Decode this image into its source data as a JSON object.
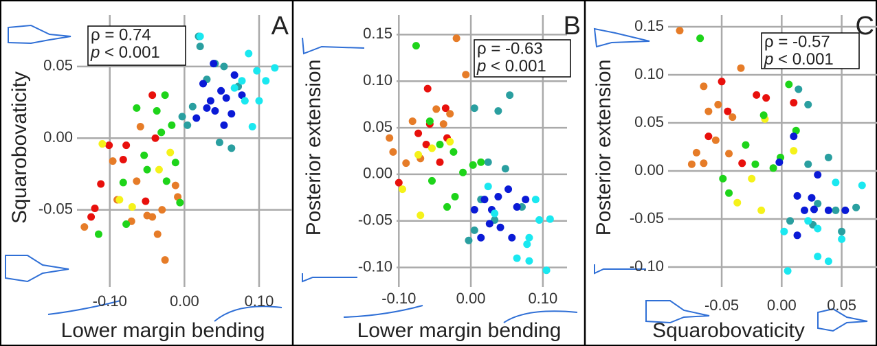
{
  "chart_data": [
    {
      "type": "scatter",
      "panel_label": "A",
      "xlabel": "Lower margin bending",
      "ylabel": "Squarobovaticity",
      "stat": "ρ = 0.74",
      "p_symbol": "p",
      "p_text": " < 0.001",
      "xlim": [
        -0.155,
        0.135
      ],
      "ylim": [
        -0.1,
        0.082
      ],
      "xticks": [
        {
          "value": -0.1,
          "label": "-0.10"
        },
        {
          "value": 0,
          "label": "0.00"
        },
        {
          "value": 0.1,
          "label": "0.10"
        }
      ],
      "yticks": [
        -0.05,
        {
          "value": 0,
          "label": "0.00"
        },
        0.05
      ],
      "grid": true,
      "series": [
        {
          "color": "#e8100c",
          "x": [
            -0.101,
            -0.078,
            -0.112,
            -0.12,
            -0.125,
            -0.039,
            -0.043,
            -0.052,
            -0.082
          ],
          "values": [
            -0.005,
            -0.005,
            -0.032,
            -0.049,
            -0.055,
            0.0,
            0.03,
            -0.044,
            -0.015
          ]
        },
        {
          "color": "#e67c28",
          "x": [
            -0.134,
            -0.096,
            -0.059,
            -0.064,
            -0.05,
            -0.036,
            -0.026,
            -0.012,
            -0.071,
            -0.03,
            -0.09,
            -0.009,
            -0.043
          ],
          "values": [
            -0.062,
            -0.016,
            0.008,
            -0.03,
            -0.054,
            -0.067,
            -0.085,
            -0.033,
            -0.058,
            -0.05,
            -0.043,
            -0.041,
            -0.055
          ]
        },
        {
          "color": "#f5f21a",
          "x": [
            -0.11,
            -0.087,
            -0.034,
            -0.07,
            -0.019
          ],
          "values": [
            -0.004,
            -0.043,
            -0.022,
            -0.048,
            -0.01
          ]
        },
        {
          "color": "#1ed41a",
          "x": [
            -0.115,
            -0.082,
            -0.064,
            -0.037,
            -0.026,
            -0.024,
            -0.05,
            -0.006,
            -0.054,
            -0.012,
            -0.031,
            -0.017,
            -0.078
          ],
          "values": [
            -0.067,
            -0.031,
            0.021,
            0.019,
            0.03,
            -0.03,
            -0.022,
            -0.045,
            -0.012,
            -0.017,
            0.004,
            0.009,
            -0.06
          ]
        },
        {
          "color": "#2a9fa0",
          "x": [
            0.011,
            0.019,
            0.03,
            -0.003,
            0.047,
            0.063,
            0.021,
            0.041,
            0.072,
            0.004,
            0.053
          ],
          "values": [
            0.022,
            0.071,
            0.041,
            0.015,
            -0.003,
            -0.007,
            0.064,
            0.052,
            0.036,
            0.009,
            0.05
          ]
        },
        {
          "color": "#0a1ad6",
          "x": [
            0.025,
            0.035,
            0.041,
            0.049,
            0.056,
            0.067,
            0.03,
            0.016,
            0.063,
            0.039,
            0.077,
            0.053
          ],
          "values": [
            0.038,
            0.026,
            0.019,
            0.033,
            0.028,
            0.044,
            0.021,
            0.014,
            0.017,
            0.052,
            0.03,
            0.009
          ]
        },
        {
          "color": "#1ae8f0",
          "x": [
            0.021,
            0.086,
            0.097,
            0.121,
            0.1,
            0.091,
            0.077,
            0.109,
            0.067,
            0.081
          ],
          "values": [
            0.071,
            0.059,
            0.047,
            0.049,
            0.026,
            0.008,
            0.04,
            0.04,
            0.035,
            0.026
          ]
        }
      ]
    },
    {
      "type": "scatter",
      "panel_label": "B",
      "xlabel": "Lower margin bending",
      "ylabel": "Posterior extension",
      "stat": "ρ = -0.63",
      "p_symbol": "p",
      "p_text": " < 0.001",
      "xlim": [
        -0.148,
        0.124
      ],
      "ylim": [
        -0.115,
        0.165
      ],
      "xticks": [
        {
          "value": -0.1,
          "label": "-0.10"
        },
        {
          "value": 0,
          "label": "0.00"
        },
        {
          "value": 0.1,
          "label": "0.10"
        }
      ],
      "yticks": [
        {
          "value": -0.1,
          "label": "-0.10"
        },
        -0.05,
        {
          "value": 0,
          "label": "0.00"
        },
        0.05,
        {
          "value": 0.1,
          "label": "0.10"
        },
        0.15
      ],
      "grid": true,
      "series": [
        {
          "color": "#e8100c",
          "x": [
            -0.1,
            -0.06,
            -0.035,
            -0.073,
            -0.062,
            -0.033,
            -0.043,
            -0.057
          ],
          "values": [
            -0.009,
            0.092,
            0.071,
            0.044,
            0.032,
            0.039,
            0.013,
            0.054
          ]
        },
        {
          "color": "#e67c28",
          "x": [
            -0.113,
            -0.108,
            -0.02,
            -0.007,
            -0.081,
            -0.048,
            -0.029,
            -0.07,
            -0.09,
            -0.038
          ],
          "values": [
            0.039,
            0.024,
            0.146,
            0.107,
            0.057,
            0.07,
            0.065,
            0.017,
            0.012,
            0.054
          ]
        },
        {
          "color": "#f5f21a",
          "x": [
            -0.095,
            -0.07,
            -0.054,
            -0.029,
            -0.073
          ],
          "values": [
            -0.016,
            -0.044,
            0.028,
            0.035,
            0.021
          ]
        },
        {
          "color": "#1ed41a",
          "x": [
            -0.076,
            -0.057,
            -0.043,
            -0.054,
            -0.024,
            -0.011,
            -0.033,
            0.003,
            0.014,
            -0.022
          ],
          "values": [
            0.138,
            0.057,
            0.032,
            -0.007,
            0.024,
            0.002,
            -0.035,
            0.01,
            0.013,
            -0.024
          ]
        },
        {
          "color": "#2a9fa0",
          "x": [
            0.005,
            0.038,
            0.054,
            0.024,
            0.048,
            0.005,
            -0.003,
            0.033,
            0.071,
            0.014
          ],
          "values": [
            0.071,
            0.068,
            0.085,
            0.013,
            0.006,
            -0.06,
            -0.071,
            -0.049,
            -0.035,
            -0.027
          ]
        },
        {
          "color": "#0a1ad6",
          "x": [
            0.005,
            0.019,
            0.029,
            0.038,
            0.052,
            0.064,
            0.014,
            0.041,
            0.057,
            0.076,
            0.026
          ],
          "values": [
            -0.038,
            -0.027,
            -0.038,
            -0.024,
            -0.016,
            -0.035,
            -0.068,
            -0.057,
            -0.068,
            -0.027,
            -0.053
          ]
        },
        {
          "color": "#1ae8f0",
          "x": [
            0.081,
            0.09,
            0.095,
            0.11,
            0.078,
            0.064,
            0.105,
            0.024,
            0.033,
            0.081
          ],
          "values": [
            -0.068,
            -0.027,
            -0.049,
            -0.048,
            -0.075,
            -0.09,
            -0.103,
            -0.013,
            -0.042,
            -0.093
          ]
        }
      ]
    },
    {
      "type": "scatter",
      "panel_label": "C",
      "xlabel": "Squarobovaticity",
      "ylabel": "Posterior extension",
      "stat": "ρ = -0.57",
      "p_symbol": "p",
      "p_text": " < 0.001",
      "xlim": [
        -0.093,
        0.076
      ],
      "ylim": [
        -0.115,
        0.16
      ],
      "xticks": [
        -0.05,
        {
          "value": 0,
          "label": "0.00"
        },
        0.05
      ],
      "yticks": [
        {
          "value": -0.1,
          "label": "-0.10"
        },
        -0.05,
        {
          "value": 0,
          "label": "0.00"
        },
        0.05,
        {
          "value": 0.1,
          "label": "0.10"
        },
        0.15
      ],
      "grid": true,
      "series": [
        {
          "color": "#e8100c",
          "x": [
            -0.05,
            -0.045,
            -0.021,
            -0.013,
            0.01,
            -0.033,
            -0.061
          ],
          "values": [
            0.093,
            0.062,
            0.079,
            0.076,
            0.071,
            0.008,
            0.036
          ]
        },
        {
          "color": "#e67c28",
          "x": [
            -0.085,
            -0.065,
            -0.034,
            -0.071,
            -0.065,
            -0.053,
            -0.041,
            -0.044,
            -0.075,
            -0.055,
            -0.061
          ],
          "values": [
            0.146,
            0.088,
            0.107,
            0.019,
            0.008,
            0.069,
            0.056,
            0.018,
            0.007,
            0.032,
            0.062
          ]
        },
        {
          "color": "#f5f21a",
          "x": [
            -0.037,
            -0.017,
            -0.014,
            0.01,
            -0.025
          ],
          "values": [
            -0.033,
            -0.041,
            0.054,
            0.021,
            -0.008
          ]
        },
        {
          "color": "#1ed41a",
          "x": [
            -0.068,
            -0.044,
            -0.03,
            -0.015,
            0.006,
            0.012,
            -0.007,
            -0.022,
            -0.049,
            -0.001
          ],
          "values": [
            0.138,
            -0.023,
            0.027,
            0.058,
            0.09,
            0.042,
            0.003,
            0.007,
            -0.008,
            0.014
          ]
        },
        {
          "color": "#2a9fa0",
          "x": [
            0.014,
            0.022,
            0.039,
            0.022,
            0.03,
            0.045,
            0.05,
            0.062,
            0.007,
            0.026
          ],
          "values": [
            0.085,
            0.069,
            0.014,
            0.007,
            -0.034,
            -0.041,
            -0.063,
            -0.038,
            -0.052,
            -0.056
          ]
        },
        {
          "color": "#0a1ad6",
          "x": [
            -0.002,
            0.013,
            0.019,
            0.027,
            0.039,
            0.013,
            0.025,
            0.01,
            0.03,
            0.053
          ],
          "values": [
            0.009,
            -0.026,
            -0.041,
            -0.04,
            -0.041,
            -0.067,
            -0.028,
            0.036,
            -0.004,
            -0.041
          ]
        },
        {
          "color": "#1ae8f0",
          "x": [
            0.005,
            0.03,
            0.039,
            0.05,
            0.067,
            0.002,
            0.022,
            0.045,
            0.03
          ],
          "values": [
            -0.104,
            -0.089,
            -0.094,
            -0.071,
            -0.015,
            -0.063,
            -0.052,
            -0.012,
            -0.06
          ]
        }
      ]
    }
  ]
}
